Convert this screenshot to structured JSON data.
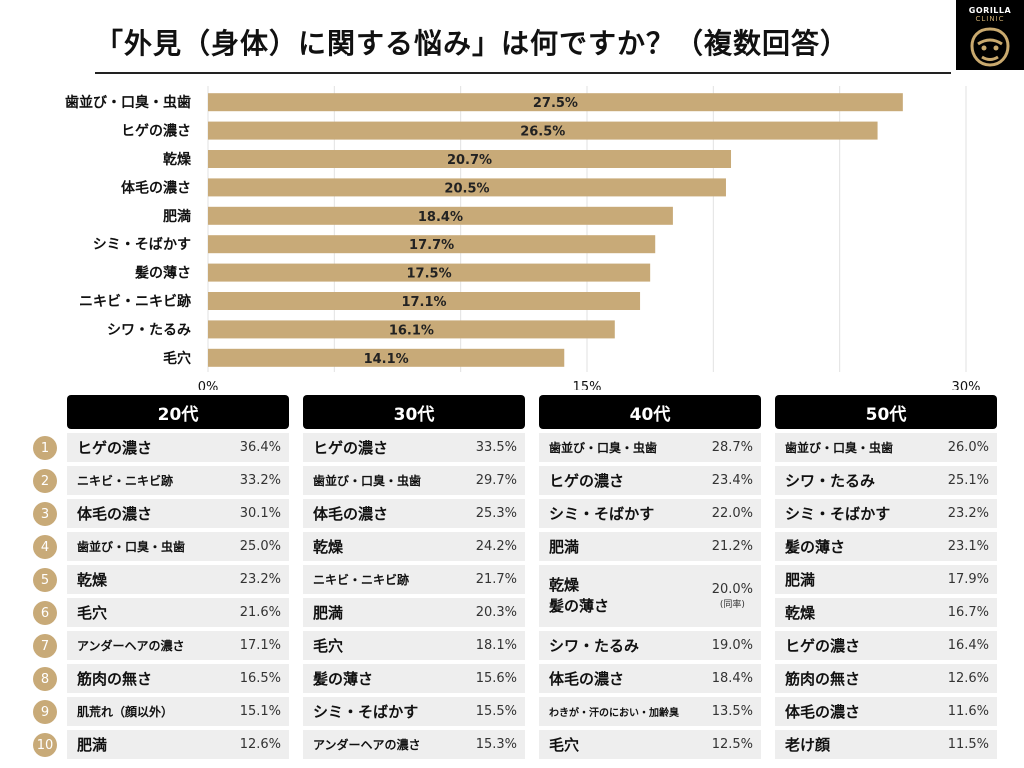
{
  "title": "「外見（身体）に関する悩み」は何ですか？（複数回答）",
  "logo": {
    "line1": "GORILLA",
    "line2": "CLINIC"
  },
  "chart_data": {
    "type": "bar",
    "orientation": "horizontal",
    "title": "「外見（身体）に関する悩み」は何ですか？（複数回答）",
    "categories": [
      "歯並び・口臭・虫歯",
      "ヒゲの濃さ",
      "乾燥",
      "体毛の濃さ",
      "肥満",
      "シミ・そばかす",
      "髪の薄さ",
      "ニキビ・ニキビ跡",
      "シワ・たるみ",
      "毛穴"
    ],
    "values": [
      27.5,
      26.5,
      20.7,
      20.5,
      18.4,
      17.7,
      17.5,
      17.1,
      16.1,
      14.1
    ],
    "value_labels": [
      "27.5%",
      "26.5%",
      "20.7%",
      "20.5%",
      "18.4%",
      "17.7%",
      "17.5%",
      "17.1%",
      "16.1%",
      "14.1%"
    ],
    "xlim": [
      0,
      30
    ],
    "ticks": [
      0,
      15,
      30
    ],
    "tick_labels": [
      "0%",
      "15%",
      "30%"
    ],
    "grid": true,
    "bar_color": "#c8aa78"
  },
  "ranks": [
    "1",
    "2",
    "3",
    "4",
    "5",
    "6",
    "7",
    "8",
    "9",
    "10"
  ],
  "age_tables": [
    {
      "header": "20代",
      "rows": [
        {
          "label": "ヒゲの濃さ",
          "value": "36.4%"
        },
        {
          "label": "ニキビ・ニキビ跡",
          "value": "33.2%"
        },
        {
          "label": "体毛の濃さ",
          "value": "30.1%"
        },
        {
          "label": "歯並び・口臭・虫歯",
          "value": "25.0%"
        },
        {
          "label": "乾燥",
          "value": "23.2%"
        },
        {
          "label": "毛穴",
          "value": "21.6%"
        },
        {
          "label": "アンダーヘアの濃さ",
          "value": "17.1%"
        },
        {
          "label": "筋肉の無さ",
          "value": "16.5%"
        },
        {
          "label": "肌荒れ（顔以外）",
          "value": "15.1%"
        },
        {
          "label": "肥満",
          "value": "12.6%"
        }
      ]
    },
    {
      "header": "30代",
      "rows": [
        {
          "label": "ヒゲの濃さ",
          "value": "33.5%"
        },
        {
          "label": "歯並び・口臭・虫歯",
          "value": "29.7%"
        },
        {
          "label": "体毛の濃さ",
          "value": "25.3%"
        },
        {
          "label": "乾燥",
          "value": "24.2%"
        },
        {
          "label": "ニキビ・ニキビ跡",
          "value": "21.7%"
        },
        {
          "label": "肥満",
          "value": "20.3%"
        },
        {
          "label": "毛穴",
          "value": "18.1%"
        },
        {
          "label": "髪の薄さ",
          "value": "15.6%"
        },
        {
          "label": "シミ・そばかす",
          "value": "15.5%"
        },
        {
          "label": "アンダーヘアの濃さ",
          "value": "15.3%"
        }
      ]
    },
    {
      "header": "40代",
      "rows": [
        {
          "label": "歯並び・口臭・虫歯",
          "value": "28.7%"
        },
        {
          "label": "ヒゲの濃さ",
          "value": "23.4%"
        },
        {
          "label": "シミ・そばかす",
          "value": "22.0%"
        },
        {
          "label": "肥満",
          "value": "21.2%"
        },
        {
          "label": "乾燥",
          "label2": "髪の薄さ",
          "value": "20.0%",
          "note": "(同率)"
        },
        {
          "label": "シワ・たるみ",
          "value": "19.0%"
        },
        {
          "label": "体毛の濃さ",
          "value": "18.4%"
        },
        {
          "label": "わきが・汗のにおい・加齢臭",
          "value": "13.5%"
        },
        {
          "label": "毛穴",
          "value": "12.5%"
        }
      ]
    },
    {
      "header": "50代",
      "rows": [
        {
          "label": "歯並び・口臭・虫歯",
          "value": "26.0%"
        },
        {
          "label": "シワ・たるみ",
          "value": "25.1%"
        },
        {
          "label": "シミ・そばかす",
          "value": "23.2%"
        },
        {
          "label": "髪の薄さ",
          "value": "23.1%"
        },
        {
          "label": "肥満",
          "value": "17.9%"
        },
        {
          "label": "乾燥",
          "value": "16.7%"
        },
        {
          "label": "ヒゲの濃さ",
          "value": "16.4%"
        },
        {
          "label": "筋肉の無さ",
          "value": "12.6%"
        },
        {
          "label": "体毛の濃さ",
          "value": "11.6%"
        },
        {
          "label": "老け顔",
          "value": "11.5%"
        }
      ]
    }
  ]
}
